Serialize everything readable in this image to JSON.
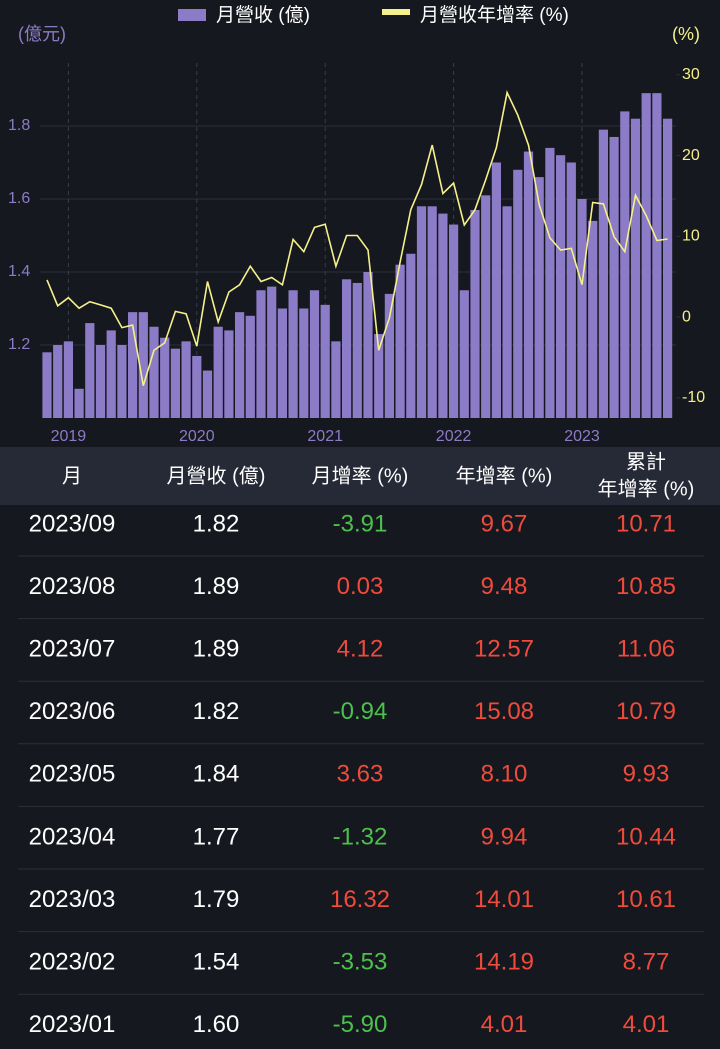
{
  "chart_data": {
    "type": "bar-line",
    "y_unit_label": "(億元)",
    "y2_unit_label": "(%)",
    "categories": [
      null,
      null,
      "2019",
      null,
      null,
      null,
      null,
      null,
      null,
      null,
      null,
      null,
      null,
      null,
      "2020",
      null,
      null,
      null,
      null,
      null,
      null,
      null,
      null,
      null,
      null,
      null,
      "2021",
      null,
      null,
      null,
      null,
      null,
      null,
      null,
      null,
      null,
      null,
      null,
      "2022",
      null,
      null,
      null,
      null,
      null,
      null,
      null,
      null,
      null,
      null,
      null,
      "2023",
      null,
      null,
      null,
      null,
      null,
      null,
      null,
      null
    ],
    "series": [
      {
        "name": "月營收 (億)",
        "color": "#8c7bc6",
        "axis": "y",
        "values": [
          1.18,
          1.2,
          1.21,
          1.08,
          1.26,
          1.2,
          1.24,
          1.2,
          1.29,
          1.29,
          1.25,
          1.22,
          1.19,
          1.21,
          1.17,
          1.13,
          1.25,
          1.24,
          1.29,
          1.28,
          1.35,
          1.36,
          1.3,
          1.35,
          1.3,
          1.35,
          1.31,
          1.21,
          1.38,
          1.37,
          1.4,
          1.23,
          1.34,
          1.42,
          1.45,
          1.58,
          1.58,
          1.56,
          1.53,
          1.35,
          1.57,
          1.61,
          1.7,
          1.58,
          1.68,
          1.73,
          1.66,
          1.74,
          1.72,
          1.7,
          1.6,
          1.54,
          1.79,
          1.77,
          1.84,
          1.82,
          1.89,
          1.89,
          1.82
        ]
      },
      {
        "name": "月營收年增率 (%)",
        "color": "#f5f08a",
        "axis": "y2",
        "values": [
          4.6,
          1.4,
          2.4,
          1.1,
          1.9,
          1.5,
          1.1,
          -1.3,
          -1.0,
          -8.5,
          -4.1,
          -3.2,
          0.7,
          0.4,
          -3.6,
          4.4,
          -0.6,
          3.1,
          4.0,
          6.3,
          4.4,
          4.9,
          4.0,
          9.6,
          8.1,
          11.1,
          11.5,
          6.3,
          10.1,
          10.1,
          8.3,
          -4.1,
          -0.1,
          6.8,
          13.3,
          16.4,
          21.3,
          15.3,
          16.6,
          11.4,
          13.3,
          17.0,
          21.0,
          27.8,
          25.0,
          21.3,
          13.9,
          9.8,
          8.3,
          8.5,
          4.01,
          14.19,
          14.01,
          9.94,
          8.1,
          15.08,
          12.57,
          9.48,
          9.67
        ]
      }
    ],
    "ylim": [
      1.0,
      2.0
    ],
    "yticks": [
      1.2,
      1.4,
      1.6,
      1.8
    ],
    "y2lim": [
      -12.5,
      32.7
    ],
    "y2ticks": [
      -10,
      0,
      10,
      20,
      30
    ],
    "grid": true
  },
  "table": {
    "header": [
      "月",
      "月營收 (億)",
      "月增率 (%)",
      "年增率 (%)",
      [
        "累計",
        "年增率 (%)"
      ]
    ],
    "rows": [
      [
        "2023/09",
        "1.82",
        "-3.91",
        "9.67",
        "10.71"
      ],
      [
        "2023/08",
        "1.89",
        "0.03",
        "9.48",
        "10.85"
      ],
      [
        "2023/07",
        "1.89",
        "4.12",
        "12.57",
        "11.06"
      ],
      [
        "2023/06",
        "1.82",
        "-0.94",
        "15.08",
        "10.79"
      ],
      [
        "2023/05",
        "1.84",
        "3.63",
        "8.10",
        "9.93"
      ],
      [
        "2023/04",
        "1.77",
        "-1.32",
        "9.94",
        "10.44"
      ],
      [
        "2023/03",
        "1.79",
        "16.32",
        "14.01",
        "10.61"
      ],
      [
        "2023/02",
        "1.54",
        "-3.53",
        "14.19",
        "8.77"
      ],
      [
        "2023/01",
        "1.60",
        "-5.90",
        "4.01",
        "4.01"
      ]
    ]
  }
}
